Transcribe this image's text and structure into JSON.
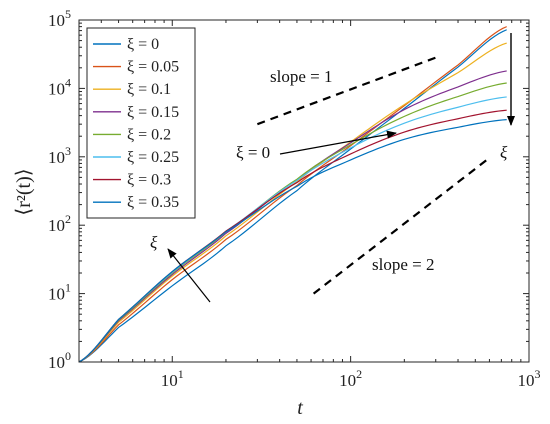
{
  "chart_data": {
    "type": "line",
    "xlabel": "t",
    "ylabel": "⟨r²(t)⟩",
    "xscale": "log",
    "yscale": "log",
    "xlim": [
      3,
      1000
    ],
    "ylim": [
      1,
      100000
    ],
    "x_ticks": [
      {
        "value": 10,
        "base": "10",
        "exp": "1"
      },
      {
        "value": 100,
        "base": "10",
        "exp": "2"
      },
      {
        "value": 1000,
        "base": "10",
        "exp": "3"
      }
    ],
    "y_ticks": [
      {
        "value": 1,
        "base": "10",
        "exp": "0"
      },
      {
        "value": 10,
        "base": "10",
        "exp": "1"
      },
      {
        "value": 100,
        "base": "10",
        "exp": "2"
      },
      {
        "value": 1000,
        "base": "10",
        "exp": "3"
      },
      {
        "value": 10000,
        "base": "10",
        "exp": "4"
      },
      {
        "value": 100000,
        "base": "10",
        "exp": "5"
      }
    ],
    "grid": false,
    "legend_position": "top-left",
    "x": [
      3,
      5,
      10,
      20,
      50,
      100,
      200,
      400,
      750
    ],
    "series": [
      {
        "name": "ξ = 0",
        "color": "#0072BD",
        "values": [
          1,
          3.2,
          13,
          50,
          320,
          1300,
          5100,
          20500,
          72000
        ]
      },
      {
        "name": "ξ = 0.05",
        "color": "#D95319",
        "values": [
          1,
          3.5,
          16,
          62,
          380,
          1450,
          5600,
          22000,
          80000
        ]
      },
      {
        "name": "ξ = 0.1",
        "color": "#EDB120",
        "values": [
          1,
          3.8,
          18,
          70,
          430,
          1650,
          5800,
          17000,
          46000
        ]
      },
      {
        "name": "ξ = 0.15",
        "color": "#7E2F8E",
        "values": [
          1,
          4.0,
          19,
          76,
          460,
          1600,
          4900,
          10500,
          18000
        ]
      },
      {
        "name": "ξ = 0.2",
        "color": "#77AC30",
        "values": [
          1,
          4.1,
          20,
          80,
          470,
          1500,
          3900,
          7600,
          12000
        ]
      },
      {
        "name": "ξ = 0.25",
        "color": "#4DBEEE",
        "values": [
          1,
          4.2,
          20.5,
          82,
          450,
          1350,
          3100,
          5300,
          7500
        ]
      },
      {
        "name": "ξ = 0.3",
        "color": "#A2142F",
        "values": [
          1,
          4.2,
          21,
          82,
          420,
          1100,
          2300,
          3600,
          4800
        ]
      },
      {
        "name": "ξ = 0.35",
        "color": "#0072BD",
        "values": [
          1,
          4.2,
          21,
          80,
          370,
          900,
          1800,
          2700,
          3500
        ]
      }
    ],
    "annotations": {
      "slope1_label": "slope = 1",
      "slope2_label": "slope = 2",
      "xi0_label": "ξ = 0",
      "xi_arrow_label_left": "ξ",
      "xi_arrow_label_right": "ξ"
    },
    "reference_lines": [
      {
        "name": "slope-1",
        "x": [
          30,
          320
        ],
        "y": [
          3000,
          30000
        ]
      },
      {
        "name": "slope-2",
        "x": [
          62,
          580
        ],
        "y": [
          10,
          900
        ]
      }
    ]
  }
}
